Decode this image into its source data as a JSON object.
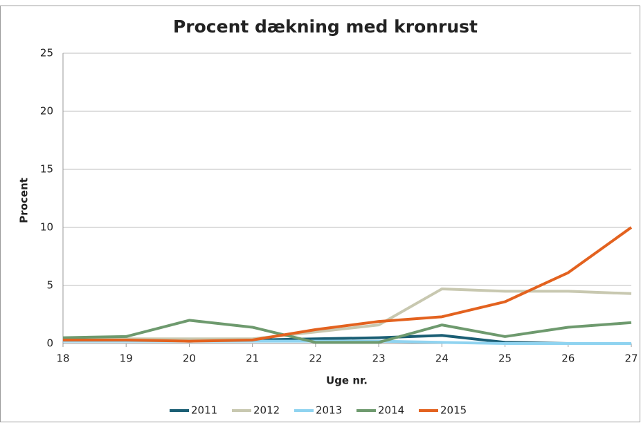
{
  "chart_data": {
    "type": "line",
    "title": "Procent dækning med kronrust",
    "x_label": "Uge nr.",
    "y_label": "Procent",
    "x": [
      18,
      19,
      20,
      21,
      22,
      23,
      24,
      25,
      26,
      27
    ],
    "xlim": [
      18,
      27
    ],
    "xticks": [
      18,
      19,
      20,
      21,
      22,
      23,
      24,
      25,
      26,
      27
    ],
    "ylim": [
      0,
      25
    ],
    "yticks": [
      0,
      5,
      10,
      15,
      20,
      25
    ],
    "grid": true,
    "series": [
      {
        "name": "2011",
        "color": "#1a5e74",
        "values": [
          0.3,
          0.3,
          0.2,
          0.3,
          0.4,
          0.5,
          0.7,
          0.1,
          0,
          0
        ]
      },
      {
        "name": "2012",
        "color": "#c8c8b0",
        "values": [
          0.4,
          0.4,
          0.4,
          0.4,
          1.0,
          1.6,
          4.7,
          4.5,
          4.5,
          4.3
        ]
      },
      {
        "name": "2013",
        "color": "#8fd3f0",
        "values": [
          0.2,
          0.2,
          0.2,
          0.2,
          0.2,
          0.2,
          0.1,
          0,
          0,
          0
        ]
      },
      {
        "name": "2014",
        "color": "#6e9a6e",
        "values": [
          0.5,
          0.6,
          2.0,
          1.4,
          0.1,
          0.1,
          1.6,
          0.6,
          1.4,
          1.8
        ]
      },
      {
        "name": "2015",
        "color": "#e3621f",
        "values": [
          0.3,
          0.3,
          0.2,
          0.3,
          1.2,
          1.9,
          2.3,
          3.6,
          6.1,
          10.0
        ]
      }
    ]
  }
}
